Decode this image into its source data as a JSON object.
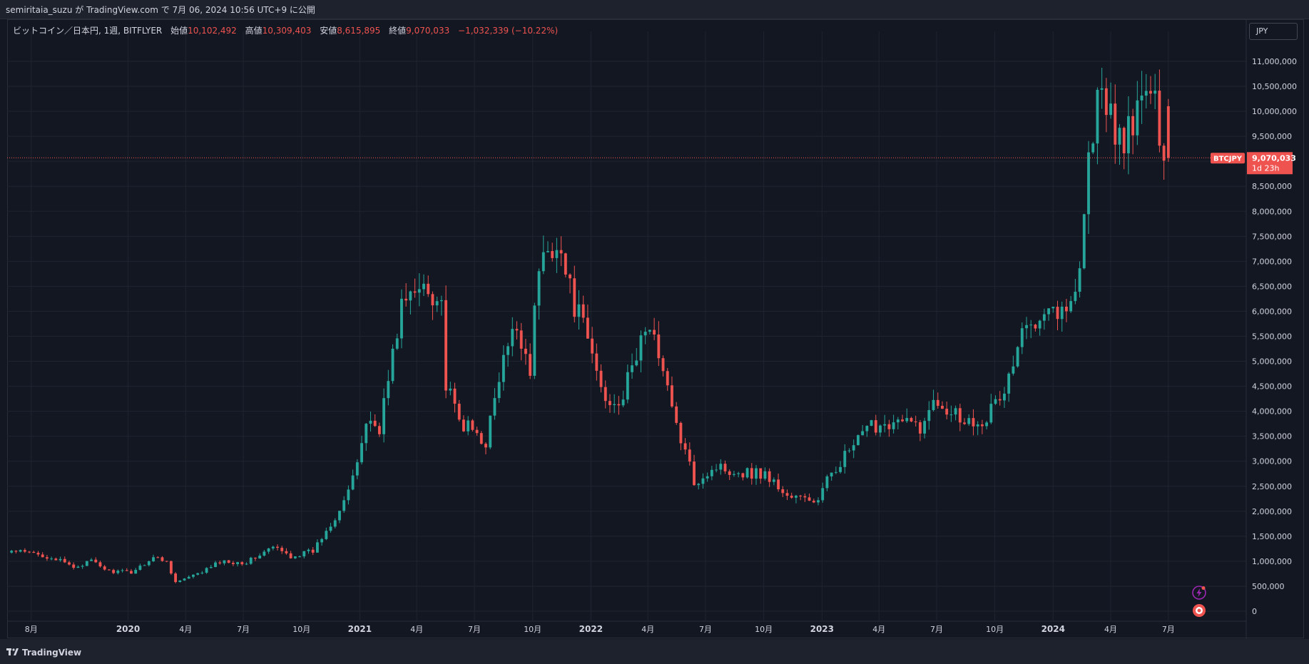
{
  "header": {
    "publish_text": "semiritaia_suzu が TradingView.com で 7月 06, 2024 10:56 UTC+9 に公開"
  },
  "symbol": {
    "name": "ビットコイン／日本円, 1週, BITFLYER",
    "open_label": "始値",
    "open_value": "10,102,492",
    "high_label": "高値",
    "high_value": "10,309,403",
    "low_label": "安値",
    "low_value": "8,615,895",
    "close_label": "終値",
    "close_value": "9,070,033",
    "change": "−1,032,339 (−10.22%)"
  },
  "currency_button": "JPY",
  "price_tag": {
    "ticker": "BTCJPY",
    "price": "9,070,033",
    "countdown": "1d 23h"
  },
  "footer": {
    "logo_text": "TradingView"
  },
  "colors": {
    "background": "#131722",
    "up": "#26a69a",
    "down": "#ef5350",
    "grid": "#1f2430",
    "text": "#d1d4dc"
  },
  "chart_data": {
    "type": "candlestick",
    "title": "",
    "interval": "1週",
    "x_tick_labels": [
      "8月",
      "2020",
      "4月",
      "7月",
      "10月",
      "2021",
      "4月",
      "7月",
      "10月",
      "2022",
      "4月",
      "7月",
      "10月",
      "2023",
      "4月",
      "7月",
      "10月",
      "2024",
      "4月",
      "7月"
    ],
    "y_tick_labels": [
      "11,000,000",
      "10,500,000",
      "10,000,000",
      "9,500,000",
      "8,500,000",
      "8,000,000",
      "7,500,000",
      "7,000,000",
      "6,500,000",
      "6,000,000",
      "5,500,000",
      "5,000,000",
      "4,500,000",
      "4,000,000",
      "3,500,000",
      "3,000,000",
      "2,500,000",
      "2,000,000",
      "1,500,000",
      "1,000,000",
      "500,000",
      "0"
    ],
    "ylim": [
      0,
      11500000
    ],
    "grid": true,
    "xlim": [
      "2019-06-24",
      "2024-11-01"
    ],
    "last_price": 9070033,
    "anchors": [
      [
        "2019-07-01",
        1200000
      ],
      [
        "2019-08-05",
        1150000
      ],
      [
        "2019-09-02",
        1080000
      ],
      [
        "2019-10-07",
        880000
      ],
      [
        "2019-11-04",
        1000000
      ],
      [
        "2019-12-02",
        800000
      ],
      [
        "2020-01-06",
        780000
      ],
      [
        "2020-02-10",
        1080000
      ],
      [
        "2020-03-02",
        1000000
      ],
      [
        "2020-03-16",
        580000
      ],
      [
        "2020-04-20",
        740000
      ],
      [
        "2020-05-25",
        990000
      ],
      [
        "2020-07-06",
        980000
      ],
      [
        "2020-08-17",
        1280000
      ],
      [
        "2020-09-14",
        1100000
      ],
      [
        "2020-10-19",
        1200000
      ],
      [
        "2020-11-23",
        1900000
      ],
      [
        "2020-12-21",
        2600000
      ],
      [
        "2021-01-11",
        3800000
      ],
      [
        "2021-02-01",
        3700000
      ],
      [
        "2021-02-22",
        5100000
      ],
      [
        "2021-03-08",
        6150000
      ],
      [
        "2021-03-29",
        6300000
      ],
      [
        "2021-04-12",
        6600000
      ],
      [
        "2021-05-10",
        6200000
      ],
      [
        "2021-05-17",
        4500000
      ],
      [
        "2021-06-07",
        3800000
      ],
      [
        "2021-07-19",
        3400000
      ],
      [
        "2021-08-16",
        5000000
      ],
      [
        "2021-09-06",
        5700000
      ],
      [
        "2021-09-27",
        4900000
      ],
      [
        "2021-10-11",
        6900000
      ],
      [
        "2021-11-08",
        7500000
      ],
      [
        "2021-11-29",
        6400000
      ],
      [
        "2021-12-27",
        5400000
      ],
      [
        "2022-01-24",
        4200000
      ],
      [
        "2022-02-21",
        4300000
      ],
      [
        "2022-03-28",
        5700000
      ],
      [
        "2022-04-25",
        5000000
      ],
      [
        "2022-05-09",
        4000000
      ],
      [
        "2022-06-13",
        2600000
      ],
      [
        "2022-07-18",
        2900000
      ],
      [
        "2022-08-22",
        2800000
      ],
      [
        "2022-10-03",
        2750000
      ],
      [
        "2022-11-07",
        2300000
      ],
      [
        "2022-12-26",
        2200000
      ],
      [
        "2023-01-16",
        2800000
      ],
      [
        "2023-02-13",
        3200000
      ],
      [
        "2023-03-20",
        3700000
      ],
      [
        "2023-04-17",
        3800000
      ],
      [
        "2023-06-12",
        3700000
      ],
      [
        "2023-06-26",
        4300000
      ],
      [
        "2023-08-21",
        3800000
      ],
      [
        "2023-09-18",
        3900000
      ],
      [
        "2023-10-16",
        4400000
      ],
      [
        "2023-11-13",
        5500000
      ],
      [
        "2023-12-18",
        6200000
      ],
      [
        "2024-01-22",
        5900000
      ],
      [
        "2024-02-12",
        7000000
      ],
      [
        "2024-02-26",
        9000000
      ],
      [
        "2024-03-11",
        10300000
      ],
      [
        "2024-04-15",
        9500000
      ],
      [
        "2024-05-06",
        9500000
      ],
      [
        "2024-05-20",
        10500000
      ],
      [
        "2024-06-10",
        10000000
      ],
      [
        "2024-07-01",
        9070033
      ]
    ]
  }
}
